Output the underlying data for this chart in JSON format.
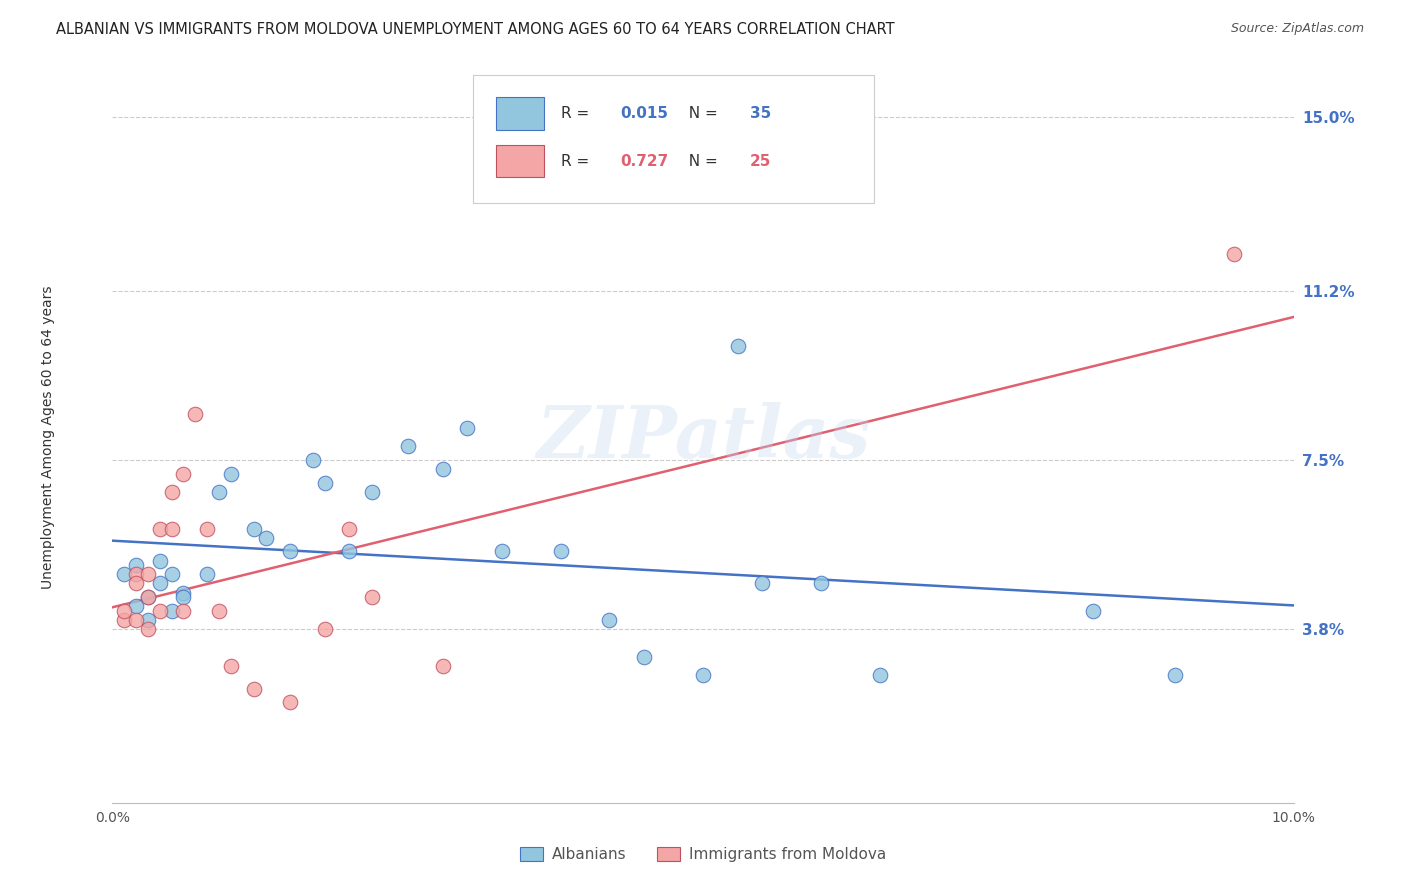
{
  "title": "ALBANIAN VS IMMIGRANTS FROM MOLDOVA UNEMPLOYMENT AMONG AGES 60 TO 64 YEARS CORRELATION CHART",
  "source": "Source: ZipAtlas.com",
  "ylabel": "Unemployment Among Ages 60 to 64 years",
  "xlim": [
    0.0,
    0.1
  ],
  "ylim": [
    0.0,
    0.16
  ],
  "xticks": [
    0.0,
    0.025,
    0.05,
    0.075,
    0.1
  ],
  "xtick_labels": [
    "0.0%",
    "",
    "",
    "",
    "10.0%"
  ],
  "yticks": [
    0.038,
    0.075,
    0.112,
    0.15
  ],
  "ytick_labels": [
    "3.8%",
    "7.5%",
    "11.2%",
    "15.0%"
  ],
  "watermark": "ZIPatlas",
  "legend1_label": "Albanians",
  "legend2_label": "Immigrants from Moldova",
  "R1": 0.015,
  "N1": 35,
  "R2": 0.727,
  "N2": 25,
  "color1": "#92c5de",
  "color2": "#f4a5a5",
  "line_color1": "#4472c4",
  "line_color2": "#e06070",
  "alb_x": [
    0.001,
    0.002,
    0.002,
    0.003,
    0.004,
    0.004,
    0.005,
    0.005,
    0.006,
    0.006,
    0.008,
    0.009,
    0.01,
    0.012,
    0.013,
    0.015,
    0.017,
    0.018,
    0.02,
    0.022,
    0.025,
    0.028,
    0.03,
    0.033,
    0.038,
    0.042,
    0.045,
    0.05,
    0.053,
    0.055,
    0.06,
    0.065,
    0.083,
    0.09,
    0.003
  ],
  "alb_y": [
    0.05,
    0.043,
    0.052,
    0.04,
    0.048,
    0.053,
    0.05,
    0.042,
    0.046,
    0.045,
    0.05,
    0.068,
    0.072,
    0.06,
    0.058,
    0.055,
    0.075,
    0.07,
    0.055,
    0.068,
    0.078,
    0.073,
    0.082,
    0.055,
    0.055,
    0.04,
    0.032,
    0.028,
    0.1,
    0.048,
    0.048,
    0.028,
    0.042,
    0.028,
    0.045
  ],
  "mol_x": [
    0.001,
    0.001,
    0.002,
    0.002,
    0.002,
    0.003,
    0.003,
    0.003,
    0.004,
    0.004,
    0.005,
    0.005,
    0.006,
    0.006,
    0.007,
    0.008,
    0.009,
    0.01,
    0.012,
    0.015,
    0.018,
    0.02,
    0.022,
    0.028,
    0.095
  ],
  "mol_y": [
    0.04,
    0.042,
    0.05,
    0.048,
    0.04,
    0.038,
    0.045,
    0.05,
    0.06,
    0.042,
    0.068,
    0.06,
    0.042,
    0.072,
    0.085,
    0.06,
    0.042,
    0.03,
    0.025,
    0.022,
    0.038,
    0.06,
    0.045,
    0.03,
    0.12
  ]
}
